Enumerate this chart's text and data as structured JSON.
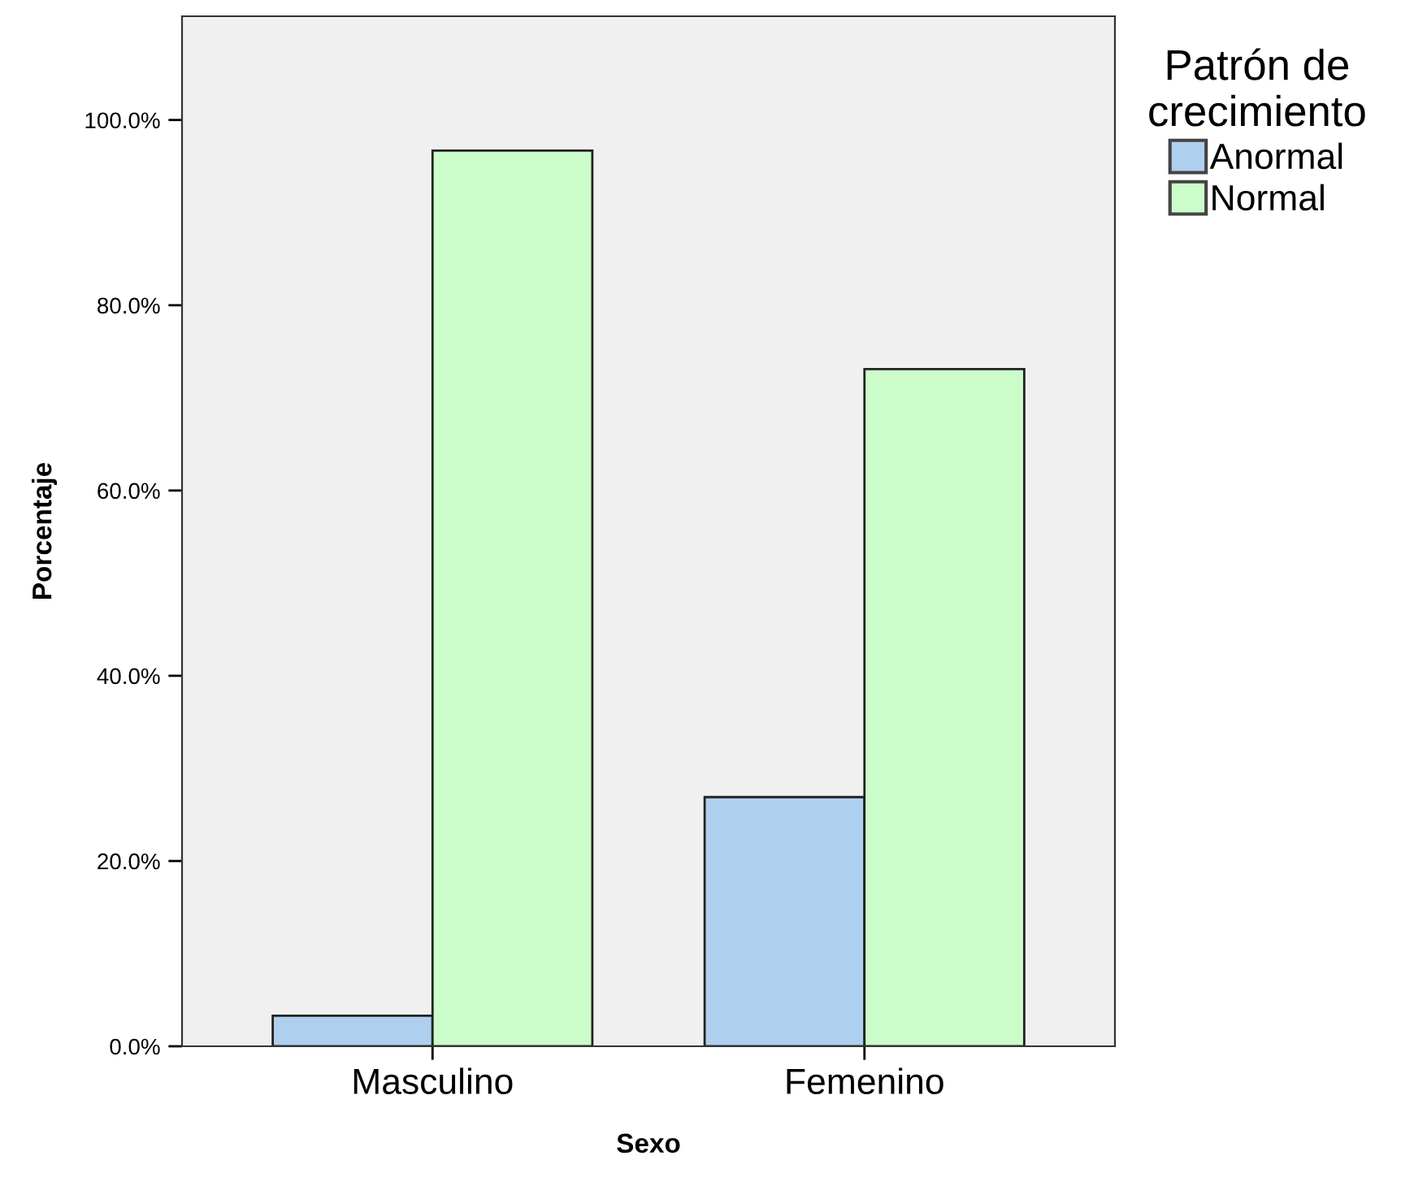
{
  "chart_data": {
    "type": "bar",
    "xlabel": "Sexo",
    "ylabel": "Porcentaje",
    "legend_title": "Patrón de\ncrecimiento",
    "categories": [
      "Masculino",
      "Femenino"
    ],
    "series": [
      {
        "name": "Anormal",
        "color": "#aecfee",
        "values": [
          3.3,
          26.9
        ]
      },
      {
        "name": "Normal",
        "color": "#ccfcca",
        "values": [
          96.7,
          73.1
        ]
      }
    ],
    "ylim": [
      0,
      111.2
    ],
    "yticks": [
      {
        "value": 0,
        "label": "0.0%"
      },
      {
        "value": 20,
        "label": "20.0%"
      },
      {
        "value": 40,
        "label": "40.0%"
      },
      {
        "value": 60,
        "label": "60.0%"
      },
      {
        "value": 80,
        "label": "80.0%"
      },
      {
        "value": 100,
        "label": "100.0%"
      }
    ],
    "grid": false,
    "legend": "top right"
  }
}
